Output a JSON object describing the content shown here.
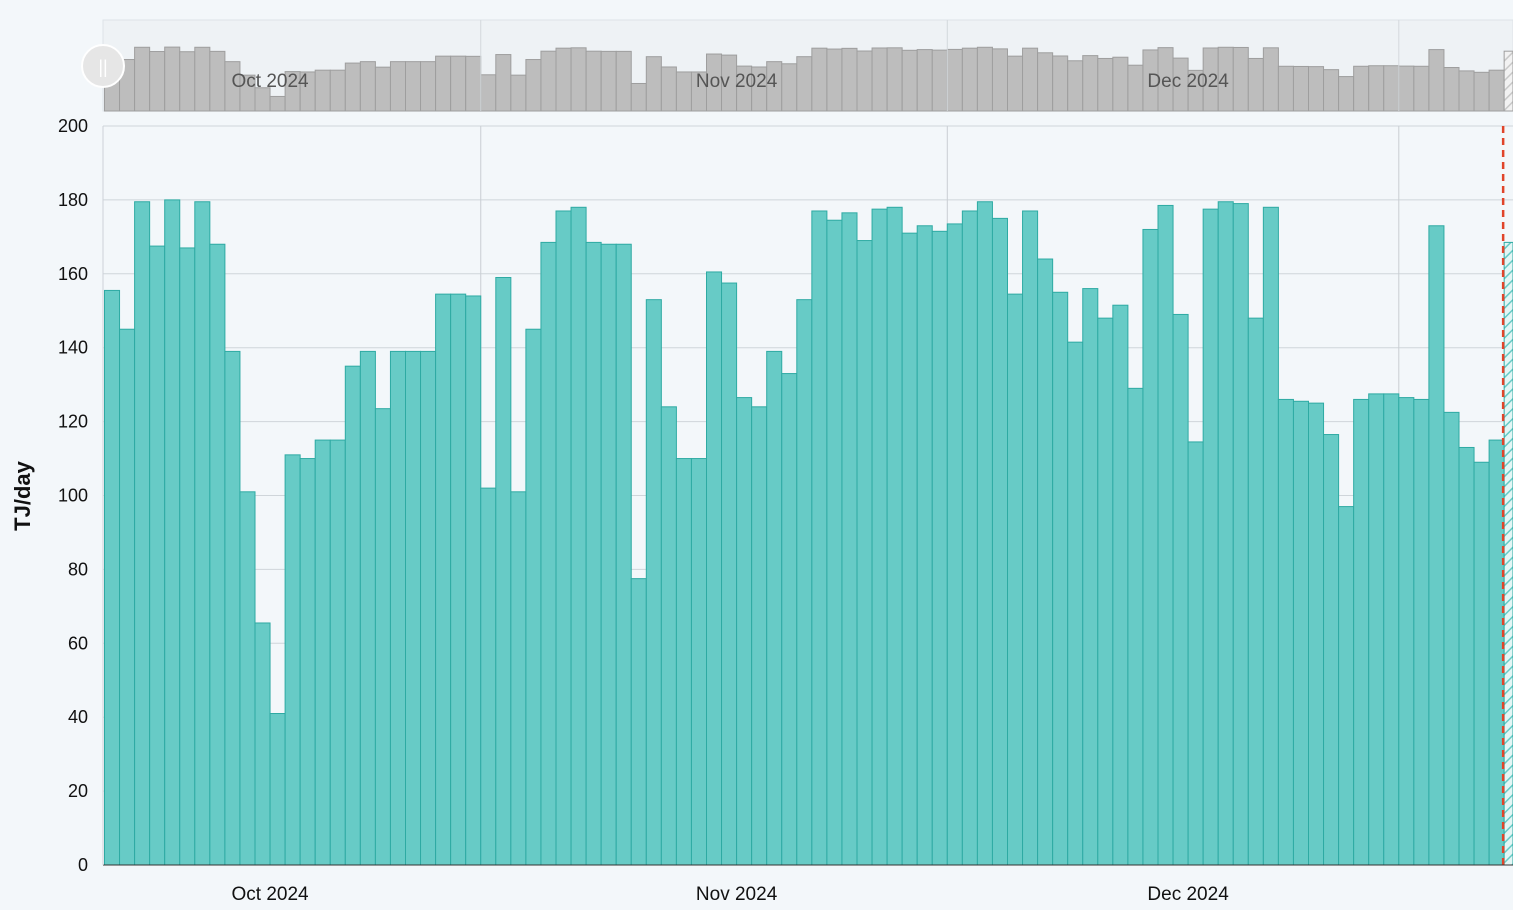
{
  "chart_data": {
    "type": "bar",
    "title": "",
    "xlabel": "",
    "ylabel": "TJ/day",
    "ylim": [
      0,
      200
    ],
    "yticks": [
      "0",
      "20",
      "40",
      "60",
      "80",
      "100",
      "120",
      "140",
      "160",
      "180",
      "200"
    ],
    "month_labels": [
      {
        "label": "Oct 2024",
        "date": "2024-10-01"
      },
      {
        "label": "Nov 2024",
        "date": "2024-11-01"
      },
      {
        "label": "Dec 2024",
        "date": "2024-12-01"
      }
    ],
    "start_date": "2024-09-20",
    "grid": true,
    "series": [
      {
        "values": [
          155.5,
          145,
          179.5,
          167.5,
          180,
          167,
          179.5,
          168,
          139,
          101,
          65.5,
          41,
          111,
          110,
          115,
          115,
          135,
          139,
          123.5,
          139,
          139,
          139,
          154.5,
          154.5,
          154,
          102,
          159,
          101,
          145,
          168.5,
          177,
          178,
          168.5,
          168,
          168,
          77.5,
          153,
          124,
          110,
          110,
          160.5,
          157.5,
          126.5,
          124,
          139,
          133,
          153,
          177,
          174.5,
          176.5,
          169,
          177.5,
          178,
          171,
          173,
          171.5,
          173.5,
          177,
          179.5,
          175,
          154.5,
          177,
          164,
          155,
          141.5,
          156,
          148,
          151.5,
          129,
          172,
          178.5,
          149,
          114.5,
          177.5,
          179.5,
          179,
          148,
          178,
          126,
          125.5,
          125,
          116.5,
          97,
          126,
          127.5,
          127.5,
          126.5,
          126,
          173,
          122.5,
          113,
          109,
          115,
          168.5
        ],
        "color": "#67cbc6",
        "stroke": "#2eaaa3",
        "last_is_forecast": true
      }
    ],
    "navigator": {
      "color": "#bdbdbd",
      "stroke": "#9e9e9e",
      "handle_glyph": "||"
    },
    "forecast_line_color": "#e0442a"
  }
}
